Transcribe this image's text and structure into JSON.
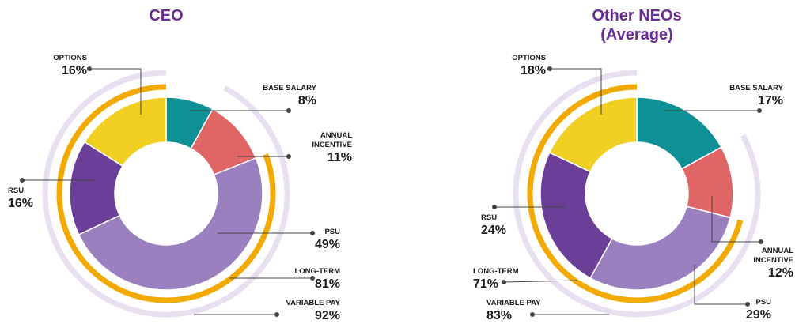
{
  "chart_data": [
    {
      "type": "pie",
      "title": "CEO",
      "categories": [
        "BASE SALARY",
        "ANNUAL INCENTIVE",
        "PSU",
        "RSU",
        "OPTIONS"
      ],
      "values": [
        8,
        11,
        49,
        16,
        16
      ],
      "value_labels": [
        "8%",
        "11%",
        "49%",
        "16%",
        "16%"
      ],
      "colors": [
        "#0e9196",
        "#e06666",
        "#9b80c0",
        "#6b3f98",
        "#f0cf22"
      ],
      "arcs": [
        {
          "name": "LONG-TERM",
          "value": 81,
          "value_label": "81%",
          "color": "#f2a900"
        },
        {
          "name": "VARIABLE PAY",
          "value": 92,
          "value_label": "92%",
          "color": "#e8dff0"
        }
      ]
    },
    {
      "type": "pie",
      "title": "Other NEOs (Average)",
      "categories": [
        "BASE SALARY",
        "ANNUAL INCENTIVE",
        "PSU",
        "RSU",
        "OPTIONS"
      ],
      "values": [
        17,
        12,
        29,
        24,
        18
      ],
      "value_labels": [
        "17%",
        "12%",
        "29%",
        "24%",
        "18%"
      ],
      "colors": [
        "#0e9196",
        "#e06666",
        "#9b80c0",
        "#6b3f98",
        "#f0cf22"
      ],
      "arcs": [
        {
          "name": "LONG-TERM",
          "value": 71,
          "value_label": "71%",
          "color": "#f2a900"
        },
        {
          "name": "VARIABLE PAY",
          "value": 83,
          "value_label": "83%",
          "color": "#e8dff0"
        }
      ]
    }
  ]
}
